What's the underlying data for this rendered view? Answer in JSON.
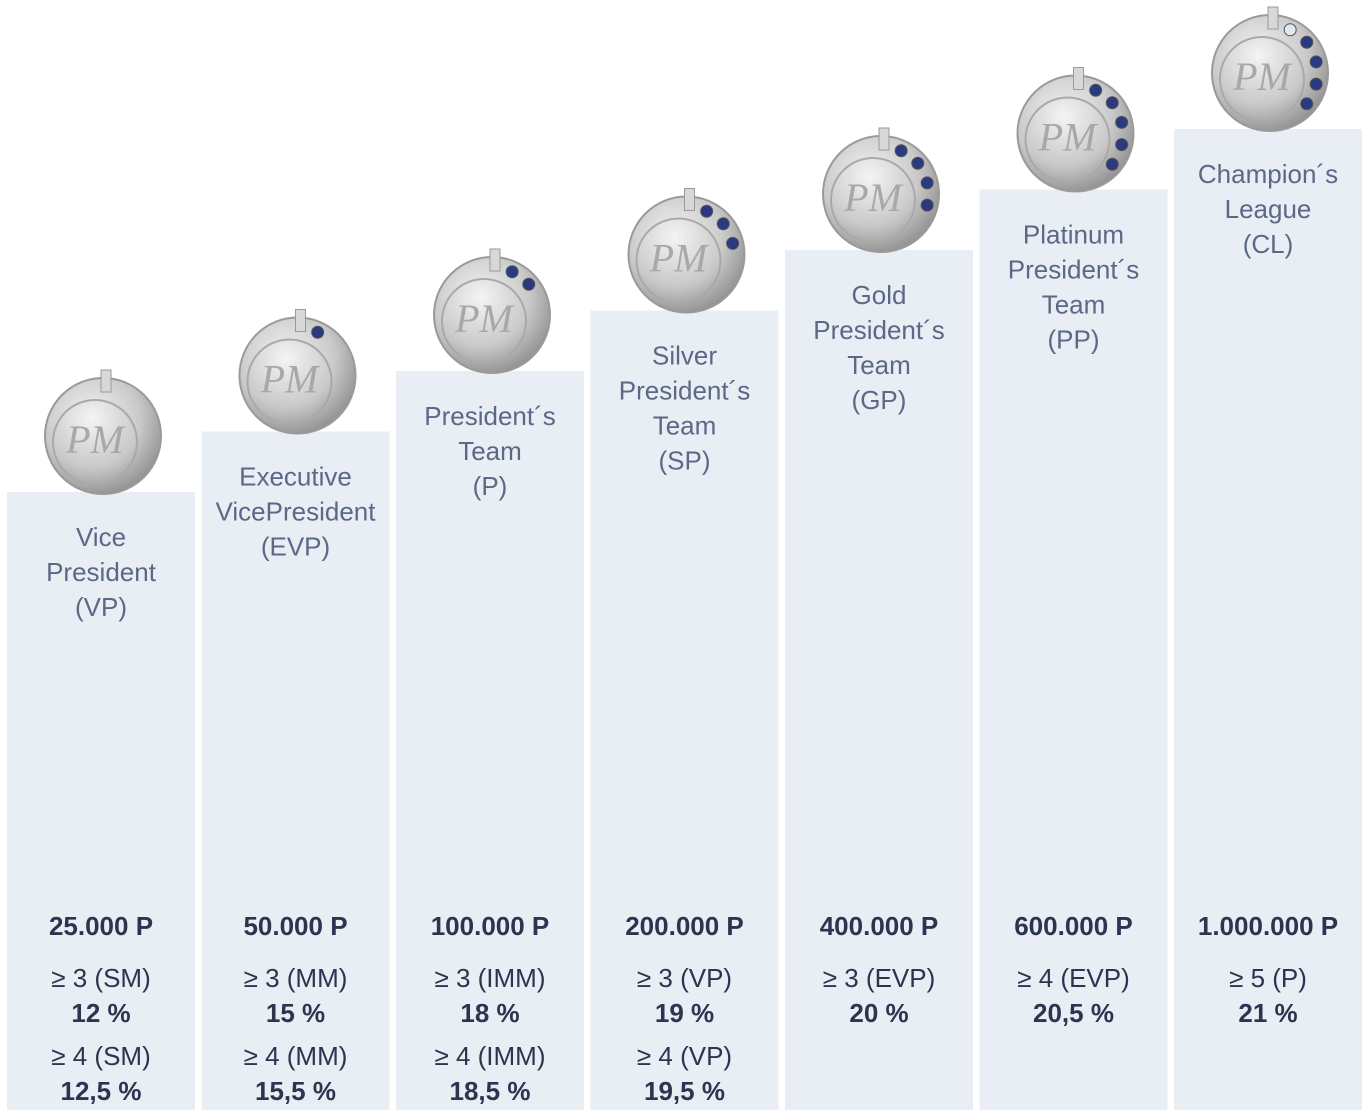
{
  "levels": [
    {
      "name": [
        "Vice",
        "President",
        "(VP)"
      ],
      "points": "25.000 P",
      "requirements": [
        {
          "condition": "≥ 3 (SM)",
          "rate": "12 %"
        },
        {
          "condition": "≥ 4 (SM)",
          "rate": "12,5 %"
        }
      ]
    },
    {
      "name": [
        "Executive",
        "VicePresident",
        "(EVP)"
      ],
      "points": "50.000 P",
      "requirements": [
        {
          "condition": "≥ 3 (MM)",
          "rate": "15 %"
        },
        {
          "condition": "≥ 4 (MM)",
          "rate": "15,5 %"
        }
      ]
    },
    {
      "name": [
        "President´s",
        "Team",
        "(P)"
      ],
      "points": "100.000 P",
      "requirements": [
        {
          "condition": "≥ 3 (IMM)",
          "rate": "18 %"
        },
        {
          "condition": "≥ 4 (IMM)",
          "rate": "18,5 %"
        }
      ]
    },
    {
      "name": [
        "Silver",
        "President´s",
        "Team",
        "(SP)"
      ],
      "points": "200.000 P",
      "requirements": [
        {
          "condition": "≥ 3 (VP)",
          "rate": "19 %"
        },
        {
          "condition": "≥ 4 (VP)",
          "rate": "19,5 %"
        }
      ]
    },
    {
      "name": [
        "Gold",
        "President´s",
        "Team",
        "(GP)"
      ],
      "points": "400.000 P",
      "requirements": [
        {
          "condition": "≥ 3 (EVP)",
          "rate": "20 %"
        }
      ]
    },
    {
      "name": [
        "Platinum",
        "President´s",
        "Team",
        "(PP)"
      ],
      "points": "600.000 P",
      "requirements": [
        {
          "condition": "≥ 4 (EVP)",
          "rate": "20,5 %"
        }
      ]
    },
    {
      "name": [
        "Champion´s",
        "League",
        "(CL)"
      ],
      "points": "1.000.000 P",
      "requirements": [
        {
          "condition": "≥ 5 (P)",
          "rate": "21 %"
        }
      ]
    }
  ]
}
